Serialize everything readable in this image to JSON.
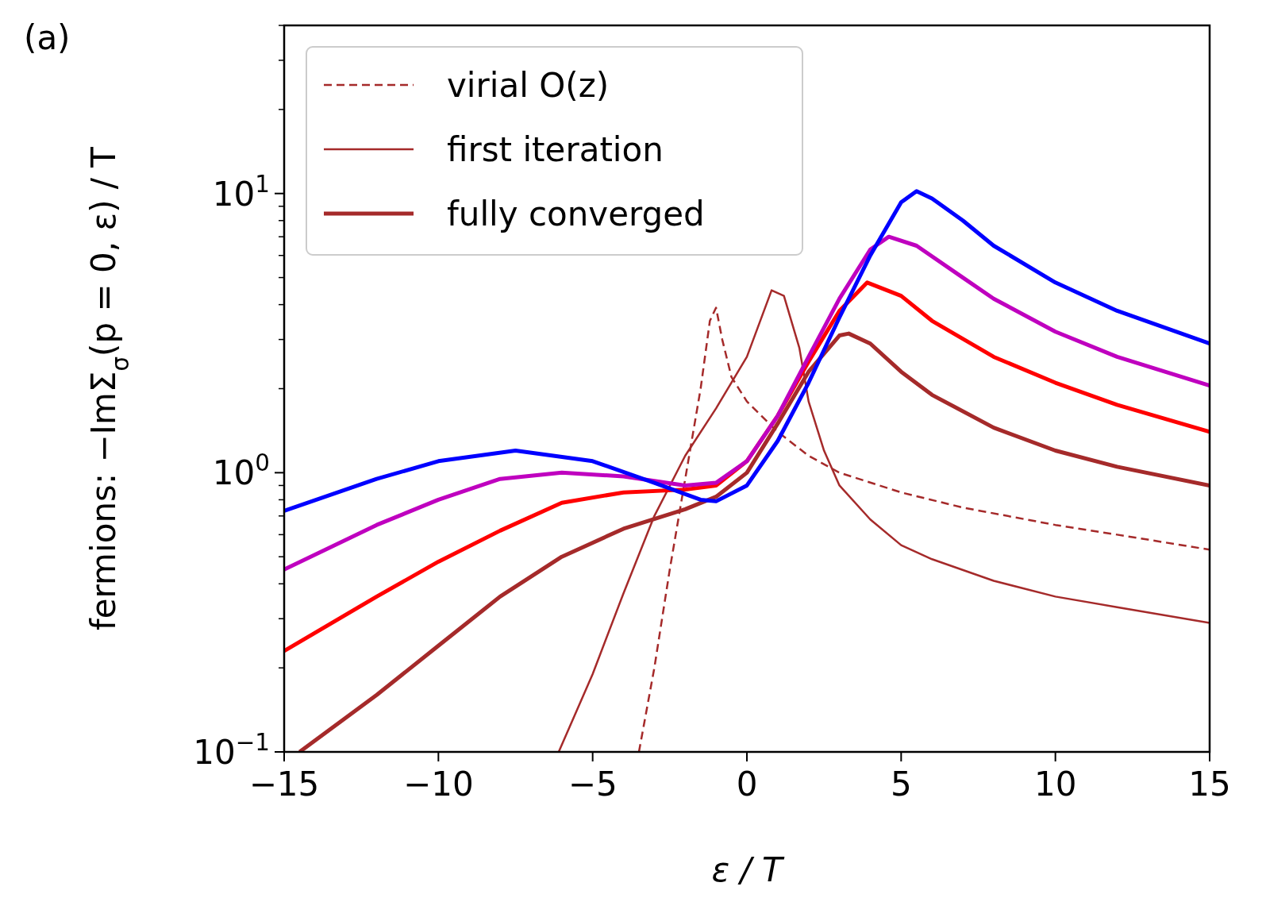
{
  "chart_data": {
    "type": "line",
    "xlabel": "ε / T",
    "ylabel": "fermions: −ImΣ$_{σ}$(p = 0, ε) / T",
    "annotations": [
      "(a)"
    ],
    "log": "y",
    "grid": false,
    "legend": "top left",
    "xlim": [
      -15,
      15
    ],
    "xticks": [
      {
        "value": -15,
        "label": "−15"
      },
      {
        "value": -10,
        "label": "−10"
      },
      {
        "value": -5,
        "label": "−5"
      },
      0,
      5,
      10,
      15
    ],
    "ylim": [
      0.1,
      40
    ],
    "yticks": [
      {
        "value": 0.1,
        "label": "10$^{−1}$"
      },
      {
        "value": 0.2,
        "label": null
      },
      {
        "value": 0.3,
        "label": null
      },
      {
        "value": 0.4,
        "label": null
      },
      {
        "value": 0.5,
        "label": null
      },
      {
        "value": 0.6,
        "label": null
      },
      {
        "value": 0.7,
        "label": null
      },
      {
        "value": 0.8,
        "label": null
      },
      {
        "value": 0.9,
        "label": null
      },
      {
        "value": 1,
        "label": "10$^{0}$"
      },
      {
        "value": 2,
        "label": null
      },
      {
        "value": 3,
        "label": null
      },
      {
        "value": 4,
        "label": null
      },
      {
        "value": 5,
        "label": null
      },
      {
        "value": 6,
        "label": null
      },
      {
        "value": 7,
        "label": null
      },
      {
        "value": 8,
        "label": null
      },
      {
        "value": 9,
        "label": null
      },
      {
        "value": 10,
        "label": "10$^{1}$"
      },
      {
        "value": 20,
        "label": null
      },
      {
        "value": 30,
        "label": null
      },
      {
        "value": 40,
        "label": null
      }
    ],
    "series": [
      {
        "name": "virial O(z)",
        "color": "#a52a2a",
        "line_style": "dashed",
        "x": [
          -3.5,
          -3,
          -2.5,
          -2,
          -1.5,
          -1.2,
          -1,
          -0.8,
          -0.5,
          0,
          1,
          2,
          3,
          5,
          7,
          10,
          12,
          15
        ],
        "values": [
          0.1,
          0.2,
          0.45,
          0.95,
          2.0,
          3.5,
          3.9,
          3.0,
          2.2,
          1.8,
          1.4,
          1.15,
          1.0,
          0.85,
          0.75,
          0.65,
          0.6,
          0.53
        ]
      },
      {
        "name": "first iteration",
        "color": "#a52a2a",
        "line_style": "solid",
        "x": [
          -6.1,
          -5,
          -4,
          -3,
          -2,
          -1,
          0,
          0.8,
          1.2,
          1.7,
          2,
          2.5,
          3,
          4,
          5,
          6,
          8,
          10,
          12,
          15
        ],
        "values": [
          0.1,
          0.19,
          0.37,
          0.7,
          1.15,
          1.7,
          2.6,
          4.5,
          4.3,
          2.8,
          1.8,
          1.2,
          0.9,
          0.68,
          0.55,
          0.49,
          0.41,
          0.36,
          0.33,
          0.29
        ]
      },
      {
        "name": "fully converged",
        "color": "#a52a2a",
        "line_style": "solid",
        "x": [
          -14.5,
          -12,
          -10,
          -8,
          -6,
          -4,
          -2,
          -1,
          0,
          1,
          2,
          3,
          3.3,
          4,
          5,
          6,
          8,
          10,
          12,
          15
        ],
        "values": [
          0.1,
          0.16,
          0.24,
          0.36,
          0.5,
          0.63,
          0.74,
          0.82,
          1.0,
          1.5,
          2.3,
          3.1,
          3.15,
          2.9,
          2.3,
          1.9,
          1.45,
          1.2,
          1.05,
          0.9
        ]
      },
      {
        "color": "#ff0000",
        "line_style": "solid",
        "x": [
          -15,
          -12,
          -10,
          -8,
          -6,
          -4,
          -2,
          -1,
          0,
          1,
          2,
          3,
          3.9,
          5,
          6,
          8,
          10,
          12,
          15
        ],
        "values": [
          0.23,
          0.36,
          0.48,
          0.62,
          0.78,
          0.85,
          0.87,
          0.9,
          1.1,
          1.6,
          2.5,
          3.8,
          4.8,
          4.3,
          3.5,
          2.6,
          2.1,
          1.75,
          1.4
        ]
      },
      {
        "color": "#bf00bf",
        "line_style": "solid",
        "x": [
          -15,
          -12,
          -10,
          -8,
          -6,
          -4,
          -2,
          -1,
          0,
          1,
          2,
          3,
          4,
          4.6,
          5.5,
          7,
          8,
          10,
          12,
          15
        ],
        "values": [
          0.45,
          0.65,
          0.8,
          0.95,
          1.0,
          0.97,
          0.9,
          0.92,
          1.1,
          1.6,
          2.6,
          4.2,
          6.3,
          7.0,
          6.5,
          5.0,
          4.2,
          3.2,
          2.6,
          2.05
        ]
      },
      {
        "color": "#0000ff",
        "line_style": "solid",
        "x": [
          -15,
          -12,
          -10,
          -7.5,
          -5,
          -3,
          -1.5,
          -1,
          0,
          1,
          2,
          3,
          4,
          5,
          5.5,
          6,
          7,
          8,
          10,
          12,
          15
        ],
        "values": [
          0.73,
          0.95,
          1.1,
          1.2,
          1.1,
          0.92,
          0.8,
          0.79,
          0.9,
          1.3,
          2.1,
          3.6,
          6.0,
          9.3,
          10.2,
          9.6,
          8.0,
          6.5,
          4.8,
          3.8,
          2.9
        ]
      }
    ]
  }
}
